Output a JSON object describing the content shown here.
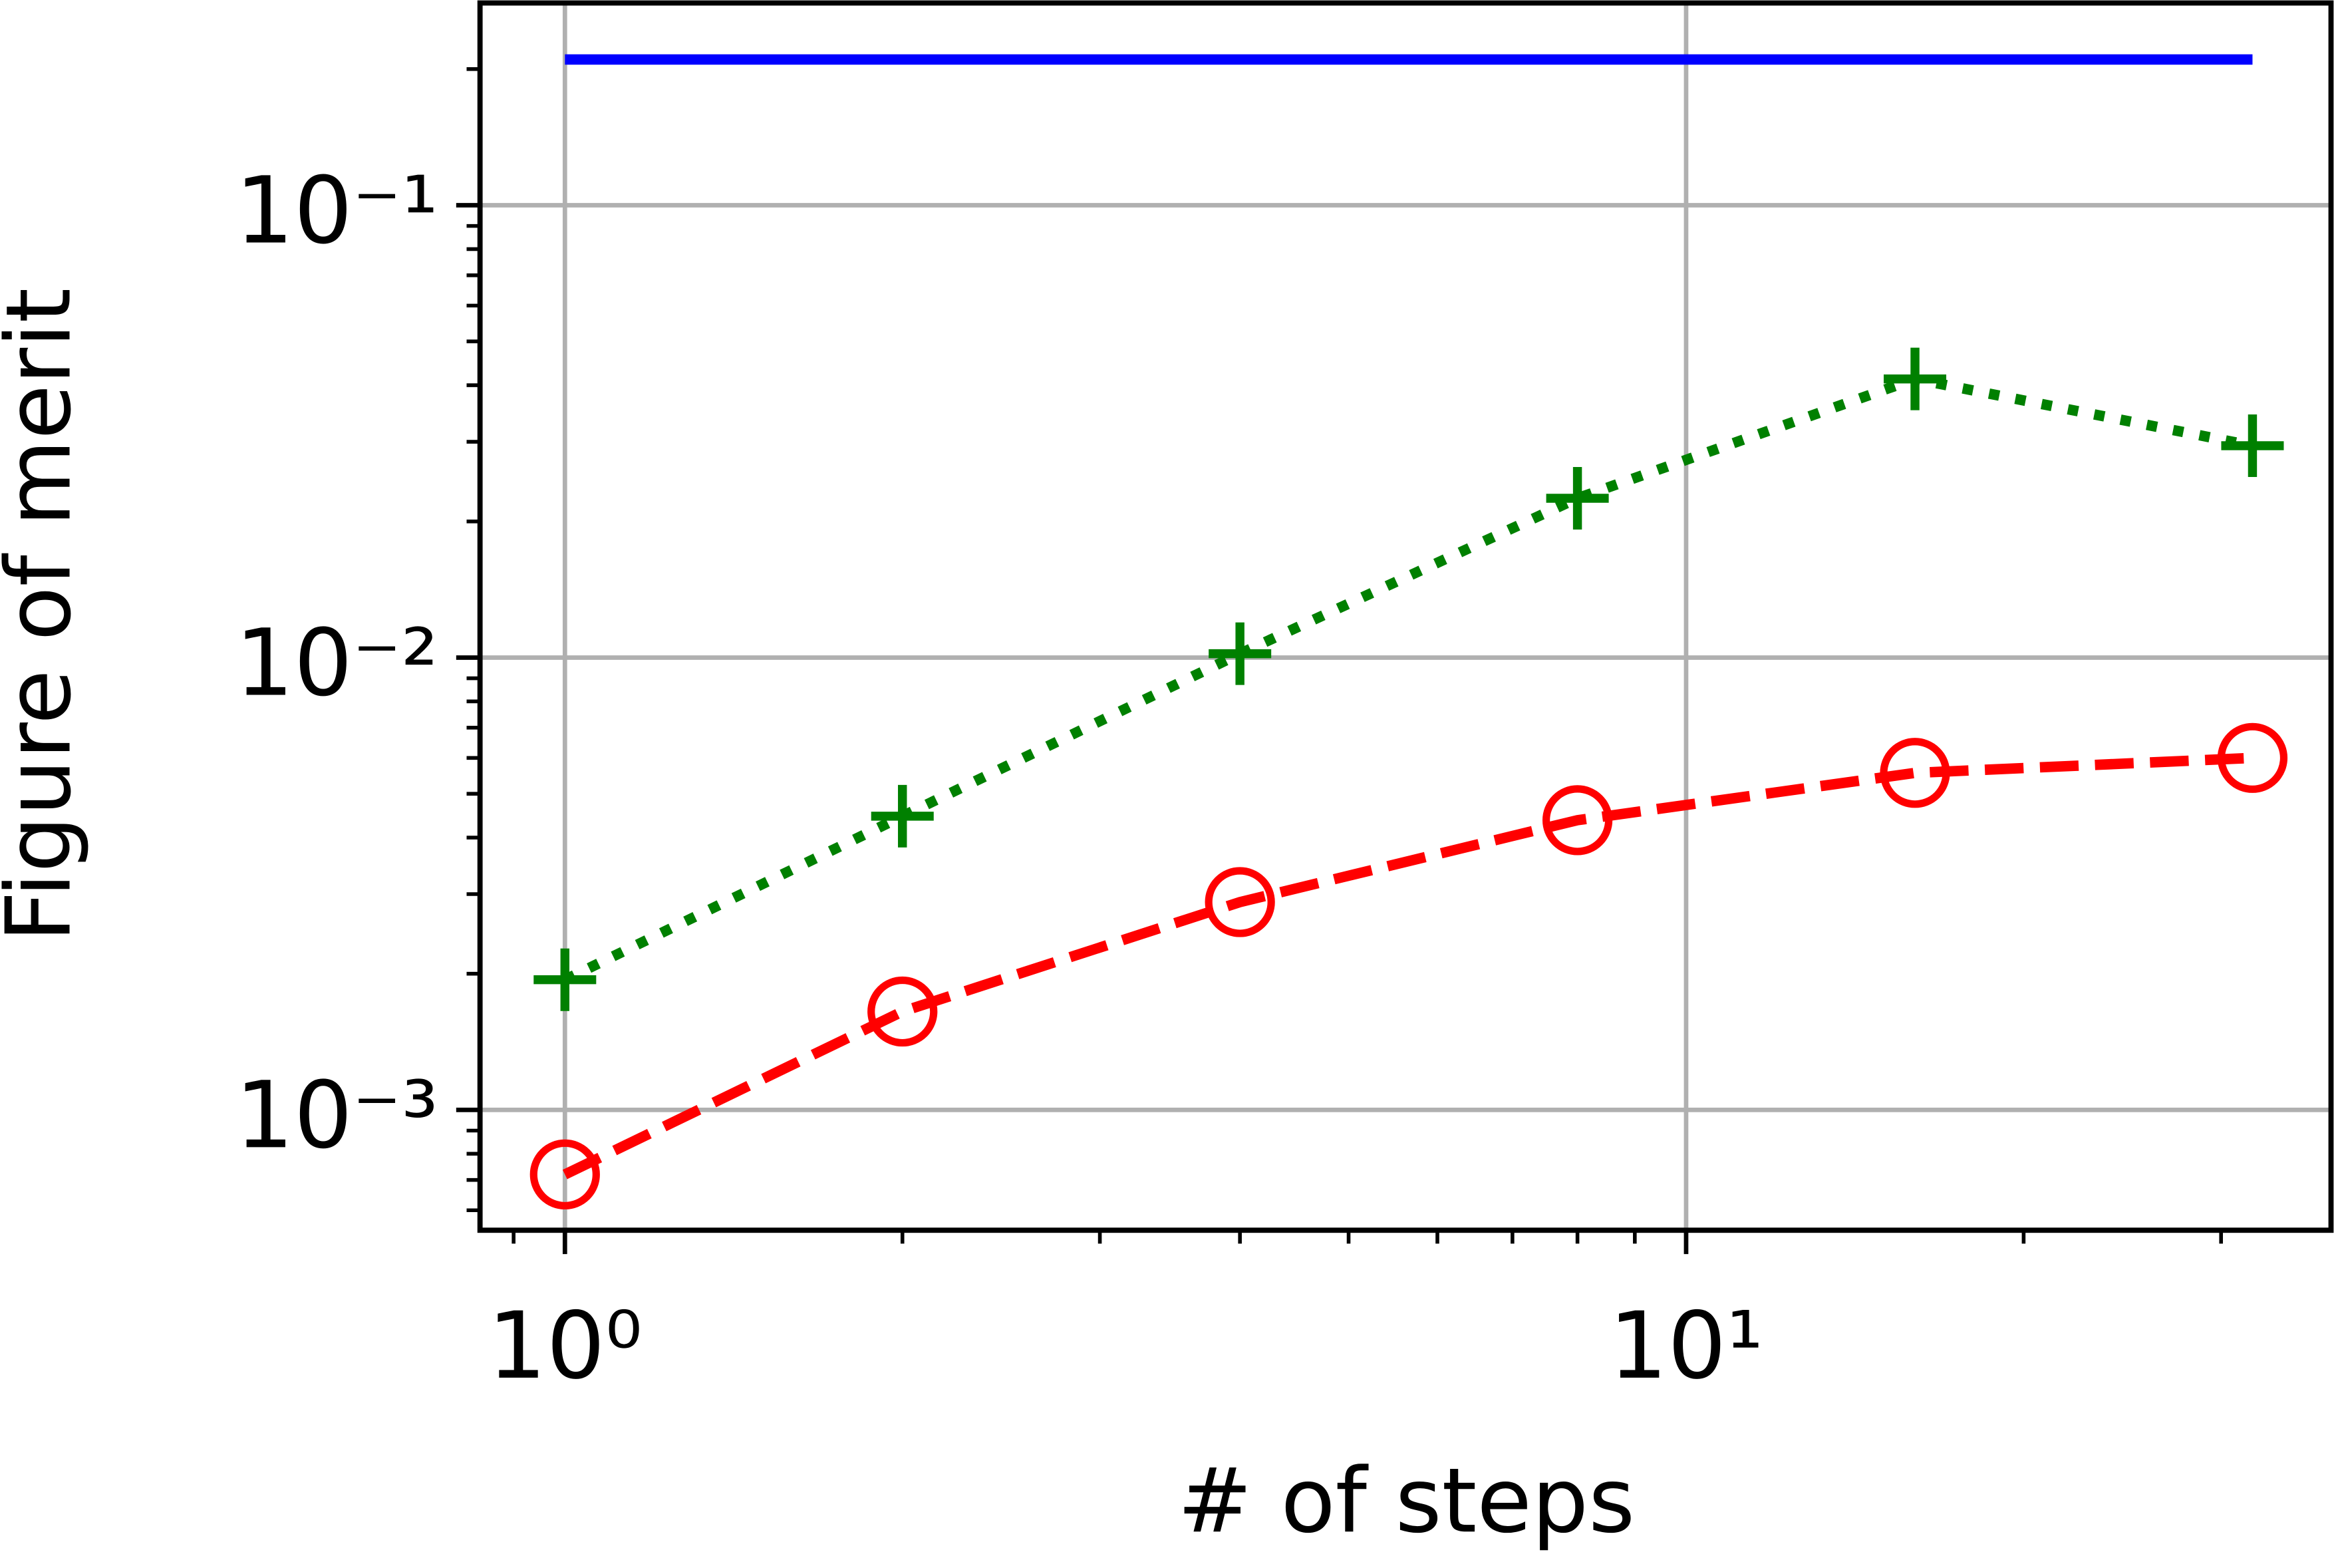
{
  "chart_data": {
    "type": "line",
    "x_label": "# of steps",
    "y_label": "Figure of merit",
    "x": [
      1,
      2,
      4,
      8,
      16,
      32
    ],
    "series": [
      {
        "color": "#0000ff",
        "linestyle": "solid",
        "marker": "none",
        "values": [
          0.21,
          0.21,
          0.21,
          0.21,
          0.21,
          0.21
        ]
      },
      {
        "color": "#008000",
        "linestyle": "dotted",
        "marker": "plus",
        "values": [
          0.00194,
          0.00446,
          0.0102,
          0.0225,
          0.0413,
          0.0294
        ]
      },
      {
        "color": "#ff0000",
        "linestyle": "dashed",
        "marker": "circle",
        "values": [
          0.00072,
          0.00165,
          0.00288,
          0.00437,
          0.00556,
          0.006
        ]
      }
    ],
    "xscale": "log",
    "yscale": "log",
    "xlim": [
      0.84,
      37.6
    ],
    "ylim": [
      0.000542,
      0.28
    ],
    "xticks": [
      {
        "value": 1,
        "label": "10⁰"
      },
      {
        "value": 10,
        "label": "10¹"
      }
    ],
    "yticks": [
      {
        "value": 0.001,
        "label": "10⁻³"
      },
      {
        "value": 0.01,
        "label": "10⁻²"
      },
      {
        "value": 0.1,
        "label": "10⁻¹"
      }
    ],
    "xminorticks": [
      0.9,
      2,
      3,
      4,
      5,
      6,
      7,
      8,
      9,
      20,
      30
    ],
    "yminorticks": [
      0.0006,
      0.0007,
      0.0008,
      0.0009,
      0.002,
      0.003,
      0.004,
      0.005,
      0.006,
      0.007,
      0.008,
      0.009,
      0.02,
      0.03,
      0.04,
      0.05,
      0.06,
      0.07,
      0.08,
      0.09,
      0.2
    ],
    "grid": true
  }
}
